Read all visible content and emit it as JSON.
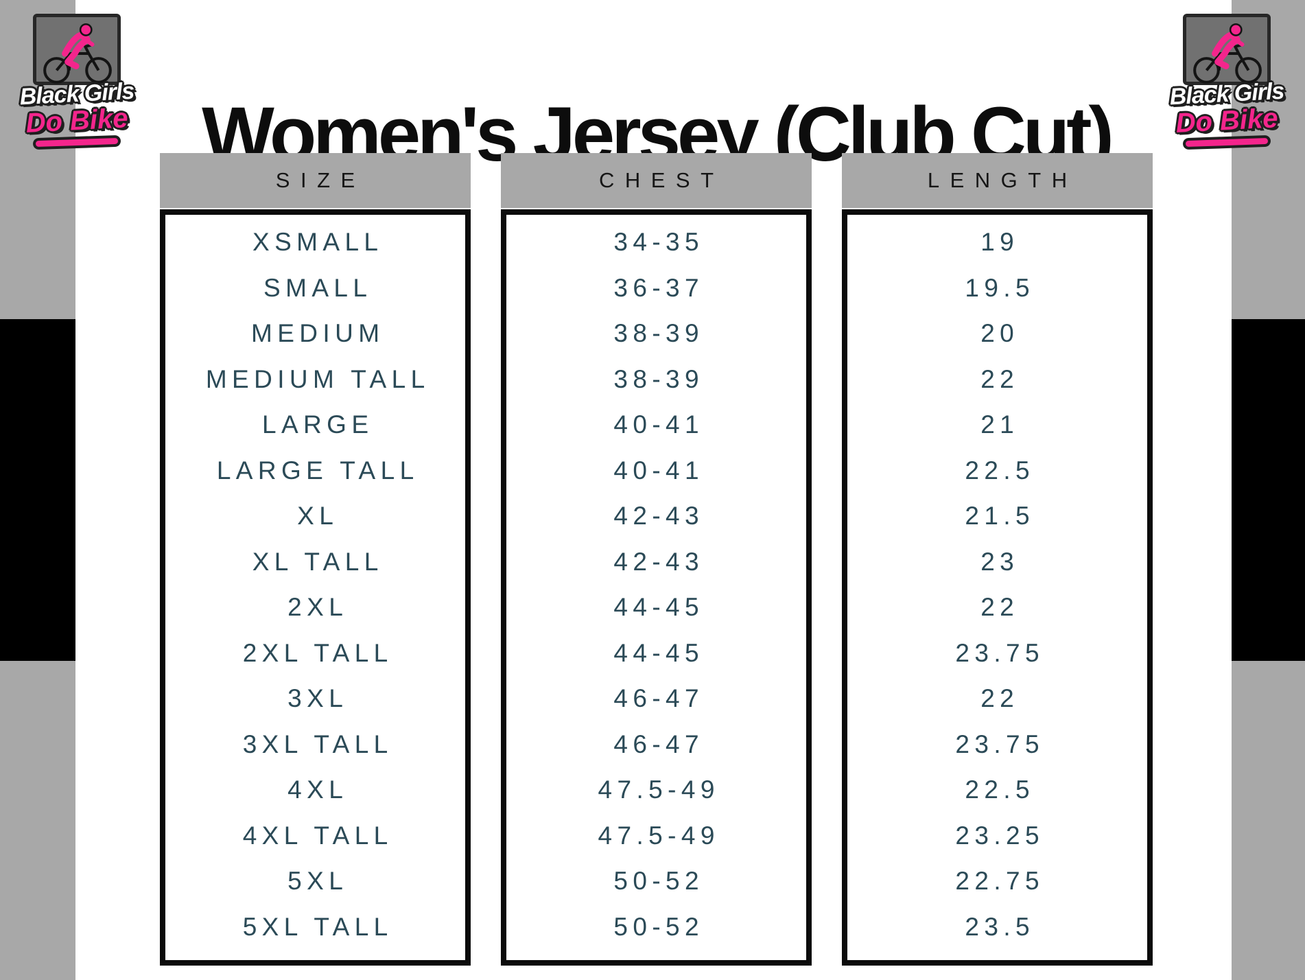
{
  "page": {
    "title": "Women's Jersey (Club Cut)"
  },
  "logo": {
    "line1": "Black Girls",
    "line2": "Do Bike"
  },
  "table": {
    "columns": [
      "SIZE",
      "CHEST",
      "LENGTH"
    ],
    "rows": [
      {
        "size": "XSMALL",
        "chest": "34-35",
        "length": "19"
      },
      {
        "size": "SMALL",
        "chest": "36-37",
        "length": "19.5"
      },
      {
        "size": "MEDIUM",
        "chest": "38-39",
        "length": "20"
      },
      {
        "size": "MEDIUM TALL",
        "chest": "38-39",
        "length": "22"
      },
      {
        "size": "LARGE",
        "chest": "40-41",
        "length": "21"
      },
      {
        "size": "LARGE TALL",
        "chest": "40-41",
        "length": "22.5"
      },
      {
        "size": "XL",
        "chest": "42-43",
        "length": "21.5"
      },
      {
        "size": "XL TALL",
        "chest": "42-43",
        "length": "23"
      },
      {
        "size": "2XL",
        "chest": "44-45",
        "length": "22"
      },
      {
        "size": "2XL TALL",
        "chest": "44-45",
        "length": "23.75"
      },
      {
        "size": "3XL",
        "chest": "46-47",
        "length": "22"
      },
      {
        "size": "3XL TALL",
        "chest": "46-47",
        "length": "23.75"
      },
      {
        "size": "4XL",
        "chest": "47.5-49",
        "length": "22.5"
      },
      {
        "size": "4XL TALL",
        "chest": "47.5-49",
        "length": "23.25"
      },
      {
        "size": "5XL",
        "chest": "50-52",
        "length": "22.75"
      },
      {
        "size": "5XL TALL",
        "chest": "50-52",
        "length": "23.5"
      }
    ]
  },
  "colors": {
    "accent_pink": "#f4258c",
    "stripe_gray": "#a8a8a8",
    "header_bar_gray": "#a8a8a8",
    "black": "#000000",
    "data_text": "#2b4a57"
  }
}
